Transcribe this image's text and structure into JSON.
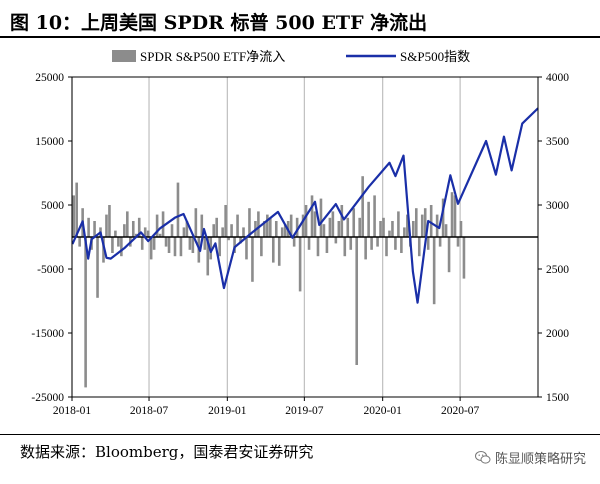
{
  "figure": {
    "title": "图 10：上周美国 SPDR 标普 500 ETF 净流出",
    "source": "数据来源：Bloomberg，国泰君安证券研究",
    "watermark": "陈显顺策略研究",
    "watermark_icon": "wechat-icon"
  },
  "colors": {
    "bar": "#8c8c8c",
    "line": "#1a2fa8",
    "grid": "#bfbfbf",
    "axis": "#000000"
  },
  "chart_data": {
    "type": "bar+line",
    "legend": [
      {
        "label": "SPDR S&P500 ETF净流入",
        "kind": "bar"
      },
      {
        "label": "S&P500指数",
        "kind": "line"
      }
    ],
    "legend_position": "top",
    "grid": "vertical",
    "x_range": [
      "2018-01-01",
      "2020-12-31"
    ],
    "x_ticks": [
      "2018-01",
      "2018-07",
      "2019-01",
      "2019-07",
      "2020-01",
      "2020-07"
    ],
    "y_left": {
      "range": [
        -25000,
        25000
      ],
      "ticks": [
        25000,
        15000,
        5000,
        -5000,
        -15000,
        -25000
      ]
    },
    "y_right": {
      "range": [
        1500,
        4000
      ],
      "ticks": [
        4000,
        3500,
        3000,
        2500,
        2000,
        1500
      ]
    },
    "flows_series": {
      "name": "SPDR S&P500 ETF净流入",
      "axis": "left",
      "start": "2018-01-05",
      "interval": "weekly",
      "values": [
        6500,
        8500,
        -1500,
        4500,
        -23500,
        3000,
        -2000,
        2500,
        -9500,
        1500,
        -4000,
        3500,
        5000,
        -2500,
        1000,
        -1500,
        -3000,
        2000,
        4000,
        -1500,
        2500,
        500,
        3000,
        -2000,
        1500,
        1000,
        -3500,
        -2000,
        3500,
        500,
        4000,
        -1500,
        -2500,
        2000,
        -3000,
        8500,
        -3000,
        1500,
        2500,
        -2000,
        -2500,
        4500,
        -4000,
        3500,
        -2000,
        -6000,
        -3500,
        2000,
        3000,
        -3000,
        1500,
        5000,
        -500,
        2000,
        -2500,
        3500,
        -1000,
        1500,
        -3500,
        4500,
        -7000,
        2500,
        4000,
        -3000,
        2500,
        3500,
        3000,
        -4000,
        2500,
        -4500,
        1500,
        2000,
        2500,
        3500,
        -1500,
        3000,
        -8500,
        3500,
        5000,
        -2000,
        6500,
        4000,
        -3000,
        6000,
        2000,
        -2500,
        3000,
        4000,
        -1000,
        2500,
        5000,
        -3000,
        3000,
        -2000,
        4500,
        -20000,
        3000,
        9500,
        -3500,
        5500,
        -2000,
        6500,
        -1500,
        2500,
        3000,
        -3000,
        1000,
        2500,
        -2000,
        4000,
        -2500,
        1500,
        3500,
        -1500,
        2500,
        4500,
        -3000,
        3500,
        4500,
        -2000,
        5000,
        -10500,
        3500,
        -1500,
        6000,
        2000,
        -5500,
        7000,
        6500,
        -1500,
        2500,
        -6500
      ]
    },
    "index_series": {
      "name": "S&P500指数",
      "axis": "right",
      "points": [
        [
          "2018-01-02",
          2695
        ],
        [
          "2018-01-26",
          2872
        ],
        [
          "2018-02-08",
          2581
        ],
        [
          "2018-02-16",
          2732
        ],
        [
          "2018-03-09",
          2786
        ],
        [
          "2018-03-23",
          2588
        ],
        [
          "2018-04-02",
          2581
        ],
        [
          "2018-05-04",
          2663
        ],
        [
          "2018-06-12",
          2786
        ],
        [
          "2018-06-29",
          2718
        ],
        [
          "2018-07-27",
          2818
        ],
        [
          "2018-08-31",
          2901
        ],
        [
          "2018-09-20",
          2930
        ],
        [
          "2018-10-12",
          2767
        ],
        [
          "2018-10-29",
          2641
        ],
        [
          "2018-11-07",
          2813
        ],
        [
          "2018-11-23",
          2633
        ],
        [
          "2018-12-04",
          2700
        ],
        [
          "2018-12-24",
          2351
        ],
        [
          "2019-01-18",
          2670
        ],
        [
          "2019-02-28",
          2784
        ],
        [
          "2019-04-30",
          2946
        ],
        [
          "2019-06-03",
          2744
        ],
        [
          "2019-07-26",
          3025
        ],
        [
          "2019-08-05",
          2844
        ],
        [
          "2019-09-13",
          3007
        ],
        [
          "2019-10-02",
          2887
        ],
        [
          "2019-11-29",
          3141
        ],
        [
          "2020-01-17",
          3330
        ],
        [
          "2020-01-31",
          3226
        ],
        [
          "2020-02-19",
          3386
        ],
        [
          "2020-03-12",
          2481
        ],
        [
          "2020-03-23",
          2237
        ],
        [
          "2020-04-17",
          2875
        ],
        [
          "2020-05-13",
          2820
        ],
        [
          "2020-06-08",
          3232
        ],
        [
          "2020-06-26",
          3009
        ],
        [
          "2020-08-31",
          3500
        ],
        [
          "2020-09-23",
          3237
        ],
        [
          "2020-10-12",
          3534
        ],
        [
          "2020-10-30",
          3270
        ],
        [
          "2020-11-24",
          3636
        ],
        [
          "2020-12-31",
          3756
        ]
      ]
    }
  }
}
